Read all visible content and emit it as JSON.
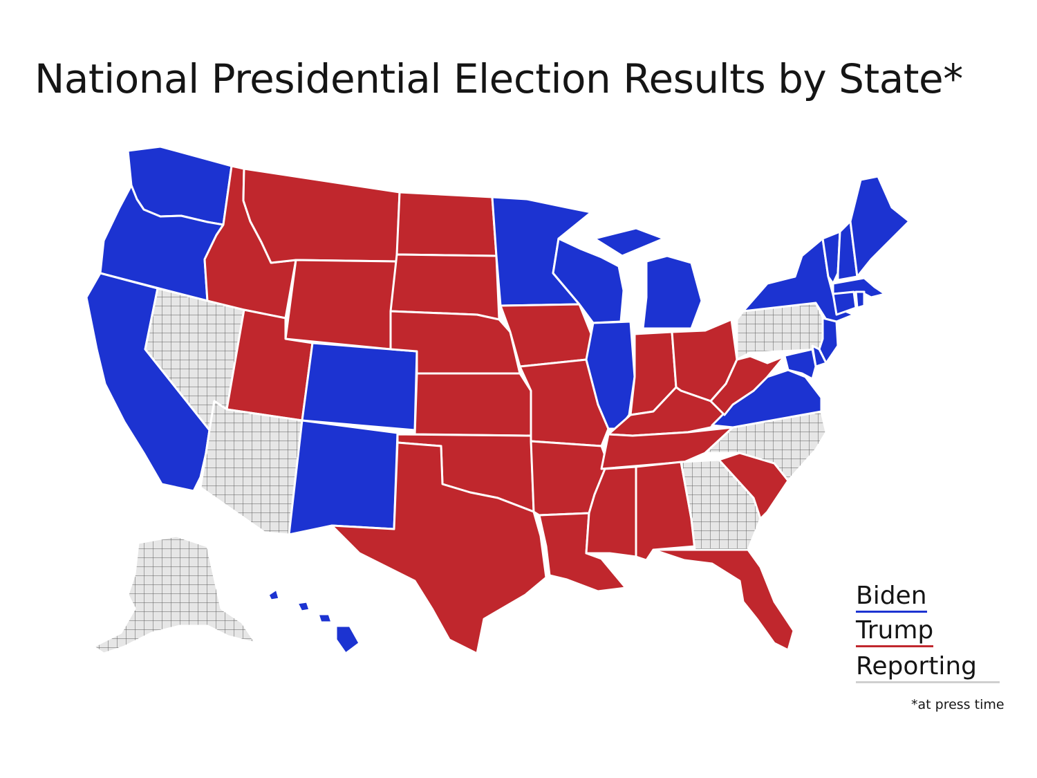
{
  "title": "National Presidential Election Results by State*",
  "colors": {
    "biden": "#1c33d1",
    "trump": "#c0272d",
    "reporting": "#e6e6e6",
    "reporting_grid": "#5a5a5a",
    "border": "#ffffff"
  },
  "legend": [
    {
      "label": "Biden",
      "color_key": "biden"
    },
    {
      "label": "Trump",
      "color_key": "trump"
    },
    {
      "label": "Reporting",
      "color_key": "reporting"
    }
  ],
  "footnote": "*at press time",
  "states": [
    {
      "id": "WA",
      "winner": "biden"
    },
    {
      "id": "OR",
      "winner": "biden"
    },
    {
      "id": "CA",
      "winner": "biden"
    },
    {
      "id": "NV",
      "winner": "reporting"
    },
    {
      "id": "ID",
      "winner": "trump"
    },
    {
      "id": "MT",
      "winner": "trump"
    },
    {
      "id": "WY",
      "winner": "trump"
    },
    {
      "id": "UT",
      "winner": "trump"
    },
    {
      "id": "CO",
      "winner": "biden"
    },
    {
      "id": "AZ",
      "winner": "reporting"
    },
    {
      "id": "NM",
      "winner": "biden"
    },
    {
      "id": "ND",
      "winner": "trump"
    },
    {
      "id": "SD",
      "winner": "trump"
    },
    {
      "id": "NE",
      "winner": "trump"
    },
    {
      "id": "KS",
      "winner": "trump"
    },
    {
      "id": "OK",
      "winner": "trump"
    },
    {
      "id": "TX",
      "winner": "trump"
    },
    {
      "id": "MN",
      "winner": "biden"
    },
    {
      "id": "IA",
      "winner": "trump"
    },
    {
      "id": "MO",
      "winner": "trump"
    },
    {
      "id": "AR",
      "winner": "trump"
    },
    {
      "id": "LA",
      "winner": "trump"
    },
    {
      "id": "WI",
      "winner": "biden"
    },
    {
      "id": "IL",
      "winner": "biden"
    },
    {
      "id": "MI",
      "winner": "biden"
    },
    {
      "id": "IN",
      "winner": "trump"
    },
    {
      "id": "OH",
      "winner": "trump"
    },
    {
      "id": "KY",
      "winner": "trump"
    },
    {
      "id": "TN",
      "winner": "trump"
    },
    {
      "id": "MS",
      "winner": "trump"
    },
    {
      "id": "AL",
      "winner": "trump"
    },
    {
      "id": "GA",
      "winner": "reporting"
    },
    {
      "id": "FL",
      "winner": "trump"
    },
    {
      "id": "SC",
      "winner": "trump"
    },
    {
      "id": "NC",
      "winner": "reporting"
    },
    {
      "id": "VA",
      "winner": "biden"
    },
    {
      "id": "WV",
      "winner": "trump"
    },
    {
      "id": "PA",
      "winner": "reporting"
    },
    {
      "id": "NY",
      "winner": "biden"
    },
    {
      "id": "NJ",
      "winner": "biden"
    },
    {
      "id": "DE",
      "winner": "biden"
    },
    {
      "id": "MD",
      "winner": "biden"
    },
    {
      "id": "VT",
      "winner": "biden"
    },
    {
      "id": "NH",
      "winner": "biden"
    },
    {
      "id": "ME",
      "winner": "biden"
    },
    {
      "id": "MA",
      "winner": "biden"
    },
    {
      "id": "CT",
      "winner": "biden"
    },
    {
      "id": "RI",
      "winner": "biden"
    },
    {
      "id": "AK",
      "winner": "reporting"
    },
    {
      "id": "HI",
      "winner": "biden"
    }
  ]
}
